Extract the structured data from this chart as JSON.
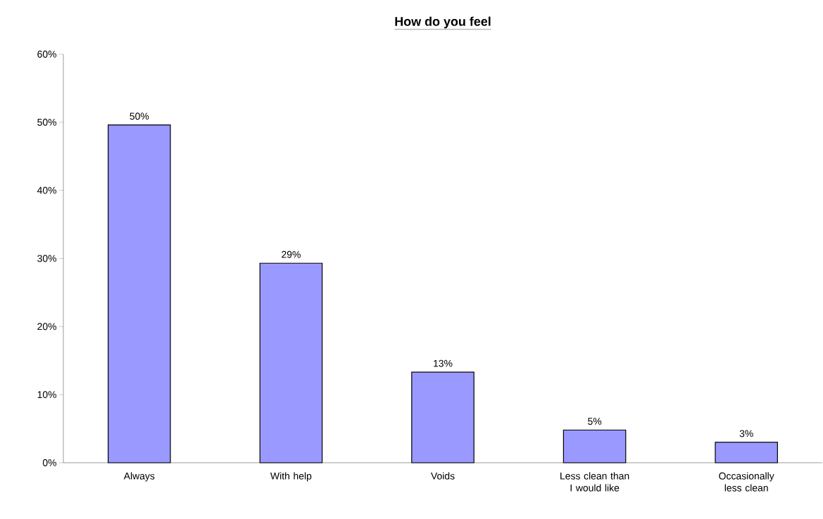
{
  "chart_data": {
    "type": "bar",
    "title": "**How do you feel**",
    "categories": [
      "Always",
      "With help",
      "Voids",
      "Less clean than I would like",
      "Occasionally less clean"
    ],
    "values": [
      49.6,
      29.3,
      13.3,
      4.8,
      3.0
    ],
    "value_labels": [
      "50%",
      "29%",
      "13%",
      "5%",
      "3%"
    ],
    "color": "#9999ff",
    "ylim": [
      0,
      60
    ],
    "yticks": [
      {
        "value": 0,
        "label": "0%"
      },
      {
        "value": 10,
        "label": "10%"
      },
      {
        "value": 20,
        "label": "20%"
      },
      {
        "value": 30,
        "label": "30%"
      },
      {
        "value": 40,
        "label": "40%"
      },
      {
        "value": 50,
        "label": "50%"
      },
      {
        "value": 60,
        "label": "60%"
      }
    ],
    "grid": false
  }
}
